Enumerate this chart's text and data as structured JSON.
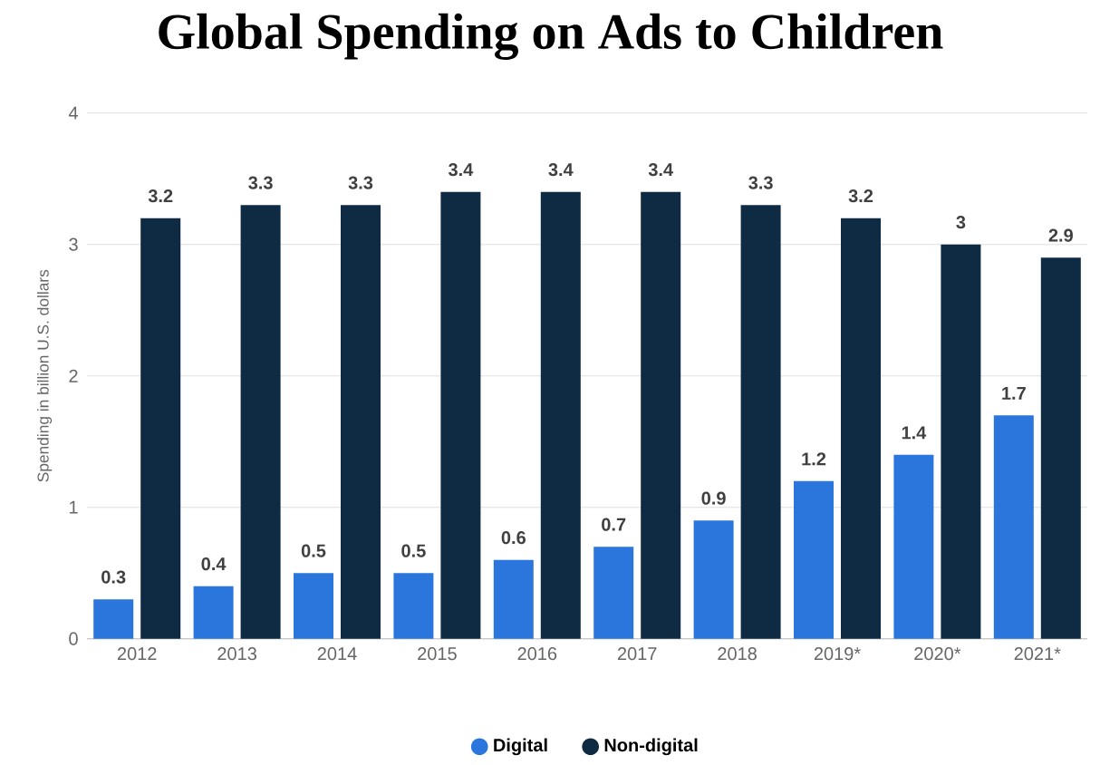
{
  "chart_data": {
    "type": "bar",
    "title": "Global Spending on Ads to Children",
    "ylabel": "Spending in billion U.S. dollars",
    "categories": [
      "2012",
      "2013",
      "2014",
      "2015",
      "2016",
      "2017",
      "2018",
      "2019*",
      "2020*",
      "2021*"
    ],
    "series": [
      {
        "name": "Digital",
        "color": "#2a76dd",
        "values": [
          0.3,
          0.4,
          0.5,
          0.5,
          0.6,
          0.7,
          0.9,
          1.2,
          1.4,
          1.7
        ]
      },
      {
        "name": "Non-digital",
        "color": "#0f2a43",
        "values": [
          3.2,
          3.3,
          3.3,
          3.4,
          3.4,
          3.4,
          3.3,
          3.2,
          3,
          2.9
        ]
      }
    ],
    "ylim": [
      0,
      4
    ],
    "yticks": [
      0,
      1,
      2,
      3,
      4
    ],
    "grid": "y",
    "legend": "bottom",
    "data_labels": true
  }
}
